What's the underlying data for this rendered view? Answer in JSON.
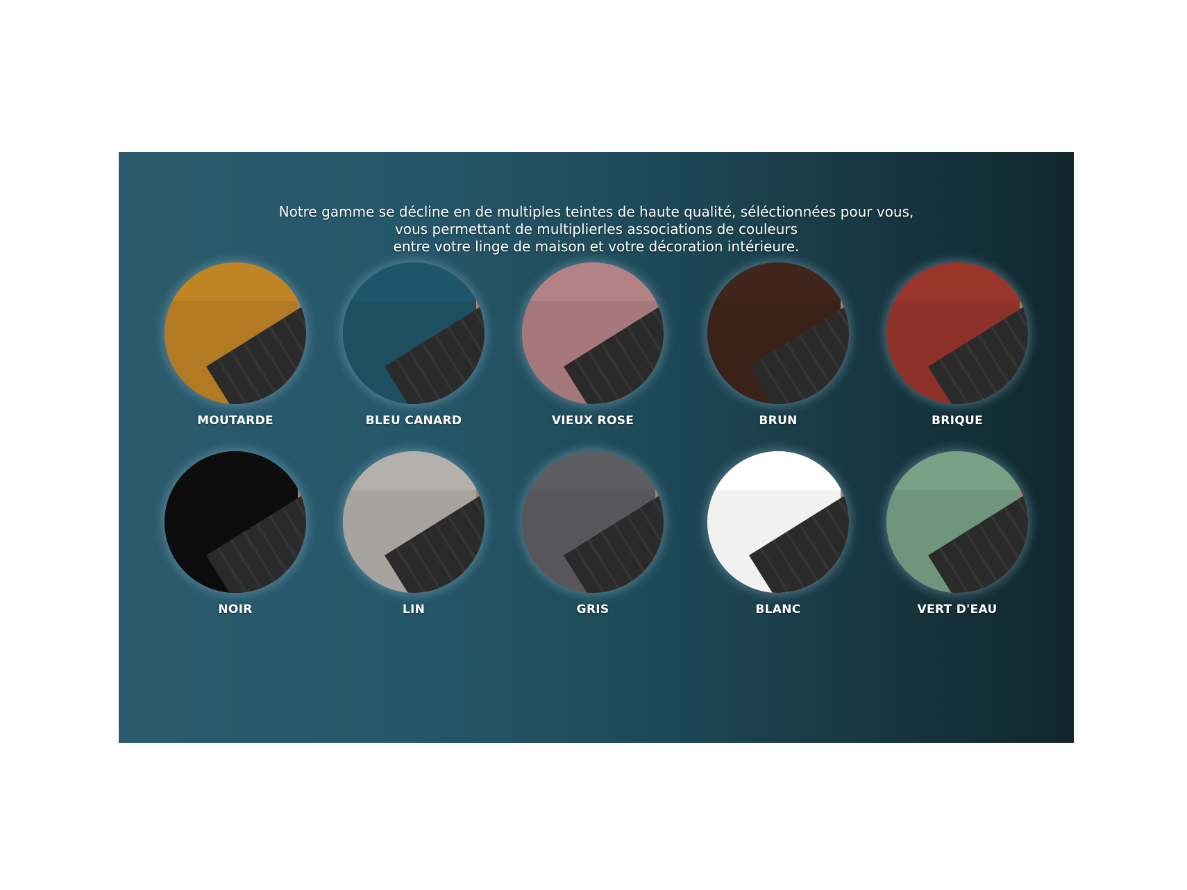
{
  "intro": {
    "line1": "Notre gamme se décline en de multiples teintes de haute qualité, séléctionnées pour vous,",
    "line2": "vous permettant de multiplierles associations de couleurs",
    "line3": "entre votre linge de maison et votre décoration intérieure."
  },
  "swatches": [
    {
      "label": "MOUTARDE",
      "color": "#b27a22"
    },
    {
      "label": "BLEU CANARD",
      "color": "#1d4f60"
    },
    {
      "label": "VIEUX ROSE",
      "color": "#a6787b"
    },
    {
      "label": "BRUN",
      "color": "#3a2219"
    },
    {
      "label": "BRIQUE",
      "color": "#8e3128"
    },
    {
      "label": "NOIR",
      "color": "#0c0c0c"
    },
    {
      "label": "LIN",
      "color": "#a7a39e"
    },
    {
      "label": "GRIS",
      "color": "#57575b"
    },
    {
      "label": "BLANC",
      "color": "#f1f1f1"
    },
    {
      "label": "VERT D'EAU",
      "color": "#6f957c"
    }
  ]
}
